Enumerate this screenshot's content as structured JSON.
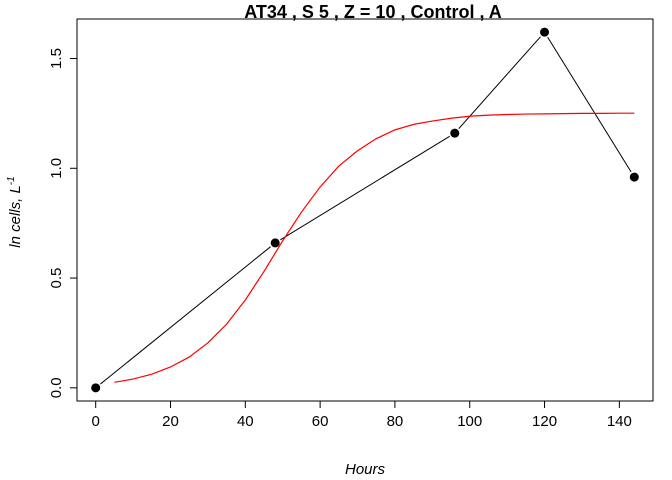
{
  "chart_data": {
    "type": "line",
    "title": "AT34 , S 5 , Z = 10 , Control , A",
    "xlabel": "Hours",
    "ylabel": "ln cells, L",
    "ylabel_superscript": "-1",
    "xlim": [
      -5,
      149
    ],
    "ylim": [
      -0.06,
      1.68
    ],
    "x_ticks": [
      0,
      20,
      40,
      60,
      80,
      100,
      120,
      140
    ],
    "x_tick_labels": [
      "0",
      "20",
      "40",
      "60",
      "80",
      "100",
      "120",
      "140"
    ],
    "y_ticks": [
      0.0,
      0.5,
      1.0,
      1.5
    ],
    "y_tick_labels": [
      "0.0",
      "0.5",
      "1.0",
      "1.5"
    ],
    "grid": false,
    "series": [
      {
        "role": "observed",
        "color": "#000000",
        "markers": true,
        "x": [
          0,
          48,
          96,
          120,
          144
        ],
        "y": [
          0.0,
          0.66,
          1.16,
          1.62,
          0.96
        ]
      },
      {
        "role": "fitted",
        "color": "#ff0000",
        "markers": false,
        "x": [
          5,
          10,
          15,
          20,
          25,
          30,
          35,
          40,
          45,
          50,
          55,
          60,
          65,
          70,
          75,
          80,
          85,
          90,
          95,
          100,
          105,
          110,
          115,
          120,
          125,
          130,
          135,
          140,
          144
        ],
        "y": [
          0.025,
          0.04,
          0.062,
          0.095,
          0.14,
          0.205,
          0.29,
          0.4,
          0.53,
          0.67,
          0.8,
          0.915,
          1.01,
          1.08,
          1.135,
          1.175,
          1.2,
          1.215,
          1.228,
          1.237,
          1.242,
          1.245,
          1.247,
          1.248,
          1.249,
          1.25,
          1.25,
          1.251,
          1.251
        ]
      }
    ]
  }
}
